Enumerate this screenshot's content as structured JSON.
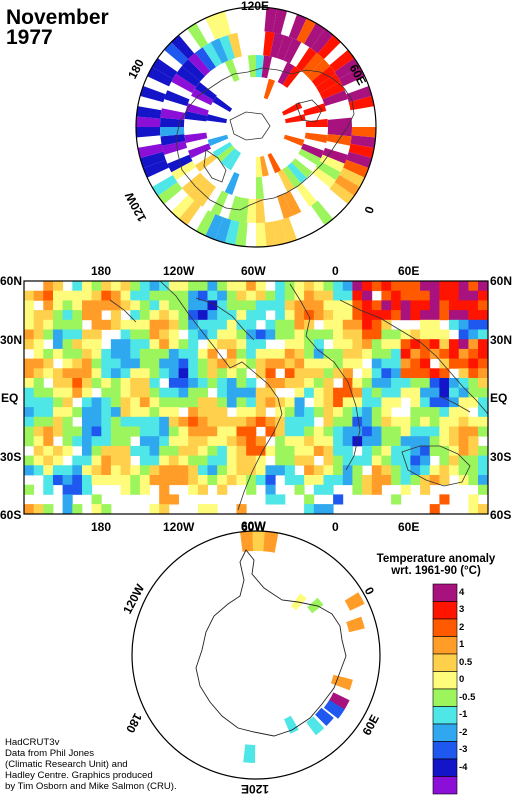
{
  "title": {
    "month": "November",
    "year": "1977"
  },
  "north_polar": {
    "labels": [
      "120E",
      "60E",
      "0",
      "120W",
      "180"
    ]
  },
  "world_map": {
    "top_lon_labels": [
      "180",
      "120W",
      "60W",
      "0",
      "60E"
    ],
    "bottom_lon_labels": [
      "180",
      "120W",
      "60W",
      "0",
      "60E"
    ],
    "left_lat_labels": [
      "60N",
      "30N",
      "EQ",
      "30S",
      "60S"
    ],
    "right_lat_labels": [
      "60N",
      "30N",
      "EQ",
      "30S",
      "60S"
    ]
  },
  "south_polar": {
    "labels": [
      "60W",
      "0",
      "60E",
      "120E",
      "180",
      "120W"
    ]
  },
  "legend": {
    "title_line1": "Temperature anomaly",
    "title_line2": "wrt. 1961-90  (°C)",
    "bins": [
      {
        "label": "4",
        "color": "#a8127e"
      },
      {
        "label": "3",
        "color": "#ff1400"
      },
      {
        "label": "2",
        "color": "#ff5a00"
      },
      {
        "label": "1",
        "color": "#ff9d28"
      },
      {
        "label": "0.5",
        "color": "#ffd04b"
      },
      {
        "label": "0",
        "color": "#fffc7c"
      },
      {
        "label": "-0.5",
        "color": "#9cf55c"
      },
      {
        "label": "-1",
        "color": "#4ee6e6"
      },
      {
        "label": "-2",
        "color": "#30a8f0"
      },
      {
        "label": "-3",
        "color": "#1e58ee"
      },
      {
        "label": "-4",
        "color": "#1414c8"
      },
      {
        "label": "",
        "color": "#8c0fd8"
      }
    ]
  },
  "credits": {
    "line1": "HadCRUT3v",
    "line2": "Data from Phil Jones",
    "line3": "(Climatic Research Unit) and",
    "line4": "Hadley Centre.  Graphics produced",
    "line5": "by Tim Osborn and Mike Salmon (CRU)."
  }
}
